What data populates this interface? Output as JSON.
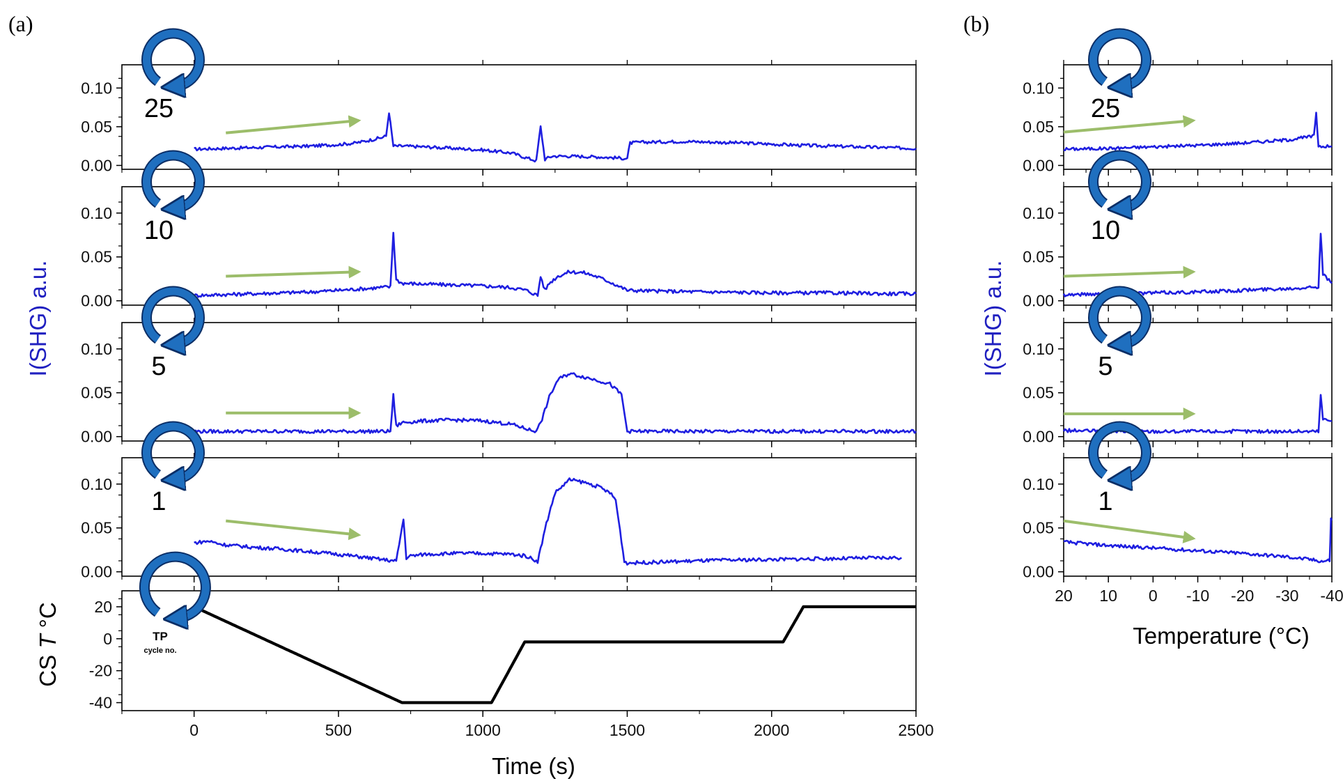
{
  "figure": {
    "panel_a_label": "(a)",
    "panel_b_label": "(b)",
    "badge_tp_label": "TP",
    "badge_tp_sublabel": "cycle no."
  },
  "colors": {
    "signal": "#1f1fe0",
    "temperature": "#000000",
    "arrow": "#9cbd6a",
    "badge_ring": "#1f6fbf",
    "ylabel": "#2020c0"
  },
  "chart_data": [
    {
      "type": "line",
      "panel": "a",
      "xlabel": "Time (s)",
      "xlim": [
        -250,
        2500
      ],
      "xticks": [
        0,
        500,
        1000,
        1500,
        2000,
        2500
      ],
      "ylabel": "I(SHG) a.u.",
      "subplots": [
        {
          "cycle": "25",
          "ylim": [
            -0.005,
            0.13
          ],
          "yticks": [
            "0.00",
            "0.05",
            "0.10"
          ],
          "arrow": {
            "from": [
              110,
              0.042
            ],
            "to": [
              570,
              0.058
            ]
          },
          "series": [
            {
              "x": [
                0,
                100,
                200,
                300,
                400,
                500,
                560,
                600,
                650,
                665,
                675,
                690,
                720,
                800,
                900,
                1000,
                1100,
                1150,
                1185,
                1200,
                1215,
                1240,
                1300,
                1400,
                1500,
                1510,
                1550,
                1700,
                1900,
                2100,
                2300,
                2500
              ],
              "y": [
                0.021,
                0.022,
                0.023,
                0.024,
                0.025,
                0.027,
                0.029,
                0.032,
                0.036,
                0.038,
                0.069,
                0.025,
                0.025,
                0.024,
                0.022,
                0.02,
                0.016,
                0.01,
                0.006,
                0.05,
                0.008,
                0.012,
                0.012,
                0.011,
                0.009,
                0.029,
                0.03,
                0.031,
                0.029,
                0.026,
                0.024,
                0.022
              ]
            }
          ]
        },
        {
          "cycle": "10",
          "ylim": [
            -0.005,
            0.13
          ],
          "yticks": [
            "0.00",
            "0.05",
            "0.10"
          ],
          "arrow": {
            "from": [
              110,
              0.028
            ],
            "to": [
              570,
              0.033
            ]
          },
          "series": [
            {
              "x": [
                0,
                100,
                200,
                300,
                400,
                500,
                600,
                680,
                690,
                700,
                720,
                800,
                900,
                1000,
                1100,
                1150,
                1190,
                1200,
                1215,
                1230,
                1260,
                1300,
                1350,
                1400,
                1450,
                1500,
                1600,
                1800,
                2000,
                2200,
                2400,
                2500
              ],
              "y": [
                0.006,
                0.007,
                0.008,
                0.009,
                0.01,
                0.012,
                0.014,
                0.016,
                0.078,
                0.024,
                0.02,
                0.019,
                0.018,
                0.017,
                0.015,
                0.012,
                0.006,
                0.028,
                0.012,
                0.02,
                0.028,
                0.033,
                0.032,
                0.027,
                0.02,
                0.012,
                0.011,
                0.01,
                0.009,
                0.009,
                0.008,
                0.008
              ]
            }
          ]
        },
        {
          "cycle": "5",
          "ylim": [
            -0.005,
            0.13
          ],
          "yticks": [
            "0.00",
            "0.05",
            "0.10"
          ],
          "arrow": {
            "from": [
              110,
              0.027
            ],
            "to": [
              570,
              0.027
            ]
          },
          "series": [
            {
              "x": [
                0,
                200,
                400,
                600,
                680,
                690,
                700,
                720,
                800,
                900,
                1000,
                1050,
                1100,
                1180,
                1200,
                1230,
                1260,
                1300,
                1350,
                1400,
                1440,
                1480,
                1500,
                1600,
                1800,
                2000,
                2200,
                2500
              ],
              "y": [
                0.006,
                0.006,
                0.006,
                0.006,
                0.006,
                0.047,
                0.012,
                0.016,
                0.018,
                0.019,
                0.018,
                0.016,
                0.014,
                0.006,
                0.015,
                0.045,
                0.065,
                0.072,
                0.068,
                0.064,
                0.06,
                0.048,
                0.006,
                0.006,
                0.006,
                0.006,
                0.006,
                0.006
              ]
            }
          ]
        },
        {
          "cycle": "1",
          "ylim": [
            -0.005,
            0.13
          ],
          "yticks": [
            "0.00",
            "0.05",
            "0.10"
          ],
          "arrow": {
            "from": [
              110,
              0.058
            ],
            "to": [
              570,
              0.042
            ]
          },
          "series": [
            {
              "x": [
                0,
                50,
                100,
                200,
                300,
                400,
                500,
                600,
                700,
                725,
                735,
                750,
                800,
                900,
                1000,
                1100,
                1150,
                1190,
                1220,
                1250,
                1300,
                1350,
                1400,
                1440,
                1460,
                1490,
                1500,
                1600,
                1700,
                1800,
                2000,
                2200,
                2400,
                2450
              ],
              "y": [
                0.033,
                0.035,
                0.031,
                0.028,
                0.026,
                0.023,
                0.02,
                0.016,
                0.012,
                0.06,
                0.016,
                0.018,
                0.02,
                0.021,
                0.021,
                0.02,
                0.018,
                0.012,
                0.055,
                0.09,
                0.105,
                0.102,
                0.097,
                0.09,
                0.082,
                0.012,
                0.01,
                0.011,
                0.012,
                0.013,
                0.014,
                0.015,
                0.016,
                0.016
              ]
            }
          ]
        },
        {
          "cycle": "TP",
          "ylabel": "CS T °C",
          "ylabel_prefix": "CS ",
          "ylabel_italic": "T",
          "ylabel_suffix": " °C",
          "ylim": [
            -45,
            30
          ],
          "yticks": [
            "-40",
            "-20",
            "0",
            "20"
          ],
          "series": [
            {
              "x": [
                0,
                720,
                1030,
                1145,
                2040,
                2110,
                2500
              ],
              "y": [
                20,
                -40,
                -40,
                -2,
                -2,
                20,
                20
              ]
            }
          ]
        }
      ]
    },
    {
      "type": "line",
      "panel": "b",
      "xlabel": "Temperature (°C)",
      "xlim": [
        20,
        -40
      ],
      "xticks": [
        "20",
        "10",
        "0",
        "-10",
        "-20",
        "-30",
        "-40"
      ],
      "ylabel": "I(SHG) a.u.",
      "subplots": [
        {
          "cycle": "25",
          "ylim": [
            -0.005,
            0.13
          ],
          "yticks": [
            "0.00",
            "0.05",
            "0.10"
          ],
          "arrow": {
            "from": [
              20,
              0.043
            ],
            "to": [
              -9,
              0.058
            ]
          },
          "series": [
            {
              "x": [
                20,
                10,
                0,
                -10,
                -20,
                -30,
                -35,
                -36,
                -36.5,
                -37,
                -38,
                -40
              ],
              "y": [
                0.021,
                0.022,
                0.024,
                0.026,
                0.029,
                0.033,
                0.037,
                0.038,
                0.069,
                0.025,
                0.025,
                0.024
              ]
            }
          ]
        },
        {
          "cycle": "10",
          "ylim": [
            -0.005,
            0.13
          ],
          "yticks": [
            "0.00",
            "0.05",
            "0.10"
          ],
          "arrow": {
            "from": [
              20,
              0.028
            ],
            "to": [
              -9,
              0.033
            ]
          },
          "series": [
            {
              "x": [
                20,
                10,
                0,
                -10,
                -20,
                -30,
                -36,
                -37,
                -37.5,
                -38,
                -40
              ],
              "y": [
                0.007,
                0.008,
                0.009,
                0.01,
                0.012,
                0.014,
                0.016,
                0.016,
                0.078,
                0.03,
                0.02
              ]
            }
          ]
        },
        {
          "cycle": "5",
          "ylim": [
            -0.005,
            0.13
          ],
          "yticks": [
            "0.00",
            "0.05",
            "0.10"
          ],
          "arrow": {
            "from": [
              20,
              0.026
            ],
            "to": [
              -9,
              0.026
            ]
          },
          "series": [
            {
              "x": [
                20,
                10,
                0,
                -10,
                -20,
                -30,
                -36,
                -37,
                -37.5,
                -38,
                -40
              ],
              "y": [
                0.007,
                0.006,
                0.006,
                0.006,
                0.006,
                0.006,
                0.006,
                0.006,
                0.047,
                0.02,
                0.018
              ]
            }
          ]
        },
        {
          "cycle": "1",
          "ylim": [
            -0.005,
            0.13
          ],
          "yticks": [
            "0.00",
            "0.05",
            "0.10"
          ],
          "arrow": {
            "from": [
              20,
              0.058
            ],
            "to": [
              -9,
              0.038
            ]
          },
          "series": [
            {
              "x": [
                20,
                15,
                10,
                0,
                -10,
                -20,
                -30,
                -35,
                -38,
                -39.5,
                -39.8,
                -40
              ],
              "y": [
                0.034,
                0.032,
                0.03,
                0.027,
                0.024,
                0.021,
                0.017,
                0.014,
                0.012,
                0.013,
                0.06,
                0.06
              ]
            }
          ]
        }
      ]
    }
  ]
}
